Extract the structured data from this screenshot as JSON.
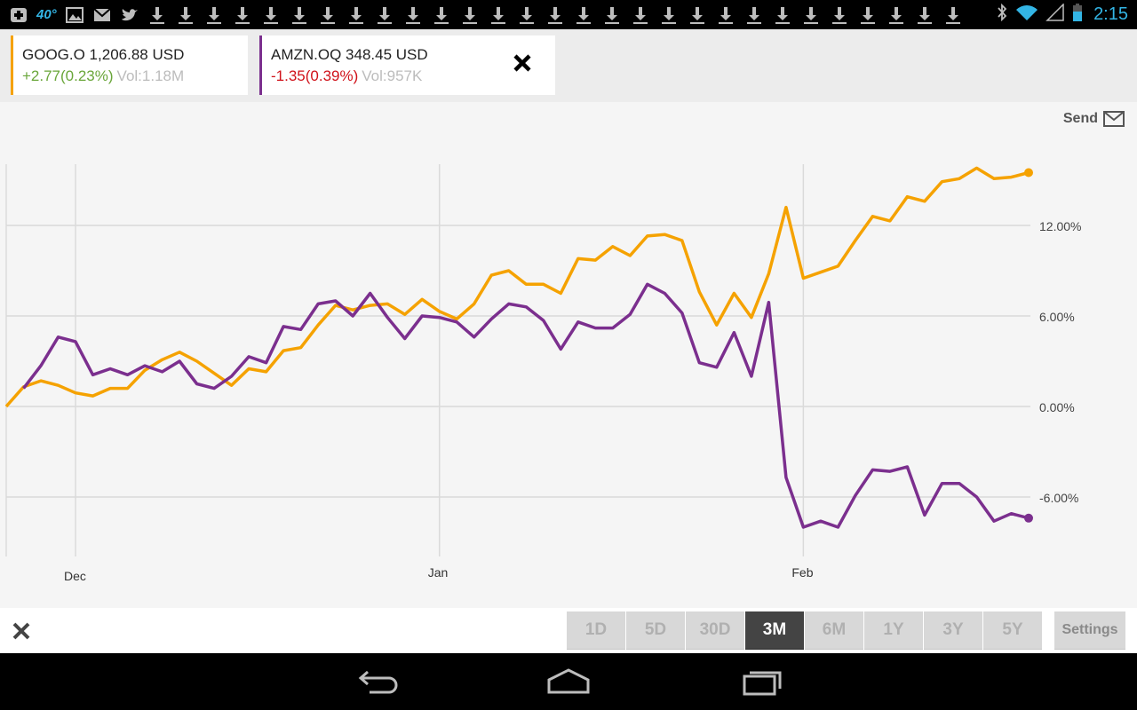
{
  "status_bar": {
    "clock": "2:15",
    "weather_temp": "40°",
    "icons": [
      "add-icon",
      "weather-icon",
      "image-icon",
      "gmail-icon",
      "twitter-icon",
      "download-icon",
      "bluetooth-icon",
      "wifi-icon",
      "signal-icon",
      "battery-icon"
    ]
  },
  "quotes": [
    {
      "symbol": "GOOG.O",
      "price": "1,206.88",
      "currency": "USD",
      "title": "GOOG.O 1,206.88 USD",
      "change": "+2.77(0.23%)",
      "volume": "Vol:1.18M",
      "color": "#f5a200"
    },
    {
      "symbol": "AMZN.OQ",
      "price": "348.45",
      "currency": "USD",
      "title": "AMZN.OQ 348.45 USD",
      "change": "-1.35(0.39%)",
      "volume": "Vol:957K",
      "color": "#7b2f8e"
    }
  ],
  "send_label": "Send",
  "ranges": [
    "1D",
    "5D",
    "30D",
    "3M",
    "6M",
    "1Y",
    "3Y",
    "5Y"
  ],
  "active_range": "3M",
  "settings_label": "Settings",
  "chart_data": {
    "type": "line",
    "y_ticks": [
      "12.00%",
      "6.00%",
      "0.00%",
      "-6.00%"
    ],
    "y_tick_values": [
      12,
      6,
      0,
      -6
    ],
    "ylim": [
      -10,
      16
    ],
    "x_labels": [
      "Dec",
      "Jan",
      "Feb"
    ],
    "x_label_index": [
      4,
      25,
      46
    ],
    "grid": true,
    "series": [
      {
        "name": "GOOG.O",
        "color": "#f5a200",
        "values": [
          0.0,
          1.3,
          1.7,
          1.4,
          0.9,
          0.7,
          1.2,
          1.2,
          2.4,
          3.1,
          3.6,
          3.0,
          2.2,
          1.4,
          2.5,
          2.3,
          3.7,
          3.9,
          5.4,
          6.7,
          6.4,
          6.7,
          6.8,
          6.1,
          7.1,
          6.3,
          5.8,
          6.8,
          8.7,
          9.0,
          8.1,
          8.1,
          7.5,
          9.8,
          9.7,
          10.6,
          10.0,
          11.3,
          11.4,
          11.0,
          7.6,
          5.4,
          7.5,
          5.9,
          8.8,
          13.2,
          8.5,
          8.9,
          9.3,
          11.0,
          12.6,
          12.3,
          13.9,
          13.6,
          14.9,
          15.1,
          15.8,
          15.1,
          15.2,
          15.5
        ],
        "markers": "end"
      },
      {
        "name": "AMZN.OQ",
        "color": "#7b2f8e",
        "values": [
          null,
          1.2,
          2.7,
          4.6,
          4.3,
          2.1,
          2.5,
          2.1,
          2.7,
          2.3,
          3.0,
          1.5,
          1.2,
          2.0,
          3.3,
          2.9,
          5.3,
          5.1,
          6.8,
          7.0,
          6.0,
          7.5,
          5.9,
          4.5,
          6.0,
          5.9,
          5.6,
          4.6,
          5.8,
          6.8,
          6.6,
          5.7,
          3.8,
          5.6,
          5.2,
          5.2,
          6.1,
          8.1,
          7.5,
          6.2,
          2.9,
          2.6,
          4.9,
          2.0,
          6.9,
          -4.7,
          -8.0,
          -7.6,
          -8.0,
          -5.9,
          -4.2,
          -4.3,
          -4.0,
          -7.2,
          -5.1,
          -5.1,
          -6.0,
          -7.6,
          -7.1,
          -7.4
        ],
        "markers": "end"
      }
    ]
  }
}
